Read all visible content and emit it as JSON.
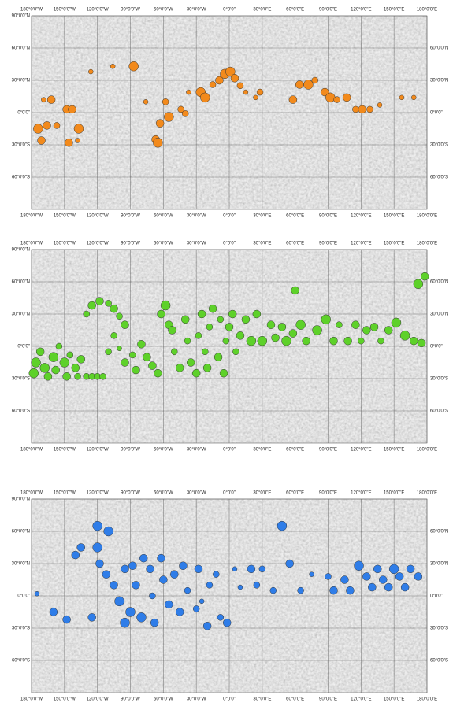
{
  "chart_data": [
    {
      "type": "scatter",
      "color": "#f28a1c",
      "x": [
        -174,
        -171,
        -169,
        -162,
        -166,
        -157,
        -148,
        -143,
        -146,
        -137,
        -138,
        -126,
        -106,
        -87,
        -76,
        -63,
        -58,
        -67,
        -65,
        -55,
        -44,
        -40,
        -37,
        -26,
        -22,
        -15,
        -9,
        -4,
        1,
        5,
        10,
        15,
        24,
        28,
        58,
        64,
        72,
        78,
        87,
        92,
        98,
        107,
        115,
        121,
        128,
        137,
        157,
        168
      ],
      "y": [
        -15,
        -26,
        12,
        12,
        -12,
        -12,
        3,
        3,
        -28,
        -15,
        -26,
        38,
        43,
        43,
        10,
        -10,
        10,
        -25,
        -28,
        -4,
        3,
        -1,
        19,
        19,
        14,
        26,
        30,
        36,
        38,
        32,
        25,
        19,
        14,
        19,
        12,
        26,
        26,
        30,
        19,
        14,
        12,
        14,
        3,
        3,
        3,
        7,
        14,
        14
      ],
      "sizes": [
        6,
        5,
        3,
        5,
        5,
        4,
        5,
        5,
        5,
        6,
        3,
        3,
        3,
        6,
        3,
        5,
        4,
        5,
        6,
        6,
        4,
        4,
        3,
        6,
        6,
        4,
        5,
        6,
        6,
        5,
        4,
        3,
        3,
        4,
        5,
        5,
        6,
        4,
        5,
        6,
        4,
        5,
        4,
        5,
        4,
        3,
        3,
        3
      ],
      "xlim": [
        -180,
        180
      ],
      "ylim": [
        -90,
        90
      ],
      "xticks": [
        {
          "value": -180,
          "label": "180°0'0\"W"
        },
        {
          "value": -150,
          "label": "150°0'0\"W"
        },
        {
          "value": -120,
          "label": "120°0'0\"W"
        },
        {
          "value": -90,
          "label": "90°0'0\"W"
        },
        {
          "value": -60,
          "label": "60°0'0\"W"
        },
        {
          "value": -30,
          "label": "30°0'0\"W"
        },
        {
          "value": 0,
          "label": "0°0'0\""
        },
        {
          "value": 30,
          "label": "30°0'0\"E"
        },
        {
          "value": 60,
          "label": "60°0'0\"E"
        },
        {
          "value": 90,
          "label": "90°0'0\"E"
        },
        {
          "value": 120,
          "label": "120°0'0\"E"
        },
        {
          "value": 150,
          "label": "150°0'0\"E"
        },
        {
          "value": 180,
          "label": "180°0'0\"E"
        }
      ],
      "yticks": [
        {
          "value": 90,
          "label": "90°0'0\"N"
        },
        {
          "value": 60,
          "label": "60°0'0\"N"
        },
        {
          "value": 30,
          "label": "30°0'0\"N"
        },
        {
          "value": 0,
          "label": "0°0'0\""
        },
        {
          "value": -30,
          "label": "30°0'0\"S"
        },
        {
          "value": -60,
          "label": "60°0'0\"S"
        }
      ],
      "grid": true
    },
    {
      "type": "scatter",
      "color": "#5ed12a",
      "x": [
        -178,
        -176,
        -172,
        -168,
        -165,
        -160,
        -158,
        -155,
        -150,
        -148,
        -145,
        -140,
        -138,
        -135,
        -130,
        -125,
        -120,
        -115,
        -130,
        -125,
        -118,
        -110,
        -105,
        -100,
        -95,
        -105,
        -110,
        -100,
        -95,
        -88,
        -85,
        -80,
        -75,
        -70,
        -65,
        -62,
        -58,
        -55,
        -50,
        -52,
        -45,
        -40,
        -38,
        -35,
        -30,
        -28,
        -25,
        -22,
        -20,
        -18,
        -15,
        -10,
        -8,
        -5,
        -3,
        0,
        3,
        6,
        10,
        15,
        20,
        25,
        30,
        38,
        42,
        48,
        52,
        58,
        60,
        65,
        70,
        80,
        88,
        95,
        100,
        108,
        115,
        120,
        125,
        132,
        138,
        145,
        152,
        160,
        168,
        175,
        172,
        178
      ],
      "y": [
        -25,
        -15,
        -5,
        -20,
        -28,
        -10,
        -22,
        0,
        -15,
        -28,
        -8,
        -20,
        -28,
        -12,
        -28,
        -28,
        -28,
        -28,
        30,
        38,
        42,
        40,
        35,
        28,
        20,
        10,
        -5,
        -2,
        -15,
        -8,
        -22,
        2,
        -10,
        -18,
        -25,
        30,
        38,
        20,
        -5,
        15,
        -20,
        25,
        5,
        -15,
        -25,
        10,
        30,
        -5,
        -20,
        18,
        35,
        -10,
        25,
        -25,
        5,
        18,
        30,
        -5,
        10,
        25,
        5,
        30,
        5,
        20,
        8,
        18,
        5,
        12,
        52,
        20,
        5,
        15,
        25,
        5,
        20,
        5,
        20,
        5,
        15,
        18,
        5,
        15,
        22,
        10,
        5,
        3,
        58,
        65
      ],
      "sizes": [
        6,
        6,
        5,
        6,
        5,
        6,
        5,
        4,
        6,
        5,
        4,
        5,
        4,
        5,
        4,
        4,
        4,
        4,
        4,
        5,
        5,
        4,
        5,
        4,
        5,
        4,
        4,
        3,
        5,
        4,
        5,
        5,
        5,
        5,
        5,
        5,
        6,
        5,
        4,
        5,
        5,
        5,
        4,
        5,
        5,
        4,
        5,
        4,
        5,
        4,
        5,
        5,
        4,
        5,
        4,
        5,
        5,
        4,
        5,
        5,
        6,
        5,
        6,
        5,
        5,
        5,
        6,
        5,
        5,
        6,
        5,
        6,
        6,
        5,
        4,
        5,
        5,
        4,
        5,
        5,
        4,
        5,
        6,
        6,
        5,
        5,
        6,
        5
      ],
      "xlim": [
        -180,
        180
      ],
      "ylim": [
        -90,
        90
      ],
      "xticks": [
        {
          "value": -180,
          "label": "180°0'0\"W"
        },
        {
          "value": -150,
          "label": "150°0'0\"W"
        },
        {
          "value": -120,
          "label": "120°0'0\"W"
        },
        {
          "value": -90,
          "label": "90°0'0\"W"
        },
        {
          "value": -60,
          "label": "60°0'0\"W"
        },
        {
          "value": -30,
          "label": "30°0'0\"W"
        },
        {
          "value": 0,
          "label": "0°0'0\""
        },
        {
          "value": 30,
          "label": "30°0'0\"E"
        },
        {
          "value": 60,
          "label": "60°0'0\"E"
        },
        {
          "value": 90,
          "label": "90°0'0\"E"
        },
        {
          "value": 120,
          "label": "120°0'0\"E"
        },
        {
          "value": 150,
          "label": "150°0'0\"E"
        },
        {
          "value": 180,
          "label": "180°0'0\"E"
        }
      ],
      "yticks": [
        {
          "value": 90,
          "label": "90°0'0\"N"
        },
        {
          "value": 60,
          "label": "60°0'0\"N"
        },
        {
          "value": 30,
          "label": "30°0'0\"N"
        },
        {
          "value": 0,
          "label": "0°0'0\""
        },
        {
          "value": -30,
          "label": "30°0'0\"S"
        },
        {
          "value": -60,
          "label": "60°0'0\"S"
        }
      ],
      "grid": true
    },
    {
      "type": "scatter",
      "color": "#2f7de8",
      "x": [
        -175,
        -160,
        -148,
        -140,
        -135,
        -125,
        -120,
        -120,
        -118,
        -110,
        -112,
        -105,
        -100,
        -95,
        -90,
        -95,
        -88,
        -85,
        -80,
        -78,
        -72,
        -70,
        -68,
        -62,
        -60,
        -55,
        -50,
        -45,
        -42,
        -38,
        -30,
        -28,
        -25,
        -20,
        -18,
        -12,
        -8,
        -2,
        5,
        10,
        20,
        25,
        30,
        40,
        48,
        55,
        65,
        75,
        90,
        95,
        105,
        110,
        118,
        125,
        130,
        135,
        140,
        145,
        150,
        155,
        160,
        165,
        172
      ],
      "y": [
        2,
        -15,
        -22,
        38,
        45,
        -20,
        65,
        45,
        30,
        60,
        20,
        10,
        -5,
        -25,
        -15,
        25,
        28,
        10,
        -20,
        35,
        25,
        0,
        -25,
        35,
        15,
        -8,
        20,
        -15,
        28,
        5,
        -12,
        25,
        -5,
        -28,
        10,
        20,
        -20,
        -25,
        25,
        8,
        25,
        10,
        25,
        5,
        65,
        30,
        5,
        20,
        18,
        5,
        15,
        5,
        28,
        18,
        8,
        25,
        15,
        8,
        25,
        18,
        8,
        25,
        18
      ],
      "sizes": [
        3,
        5,
        5,
        5,
        5,
        5,
        6,
        6,
        5,
        6,
        5,
        5,
        6,
        6,
        6,
        5,
        5,
        5,
        6,
        5,
        5,
        4,
        5,
        5,
        5,
        5,
        5,
        5,
        5,
        4,
        4,
        5,
        3,
        5,
        4,
        4,
        4,
        5,
        3,
        3,
        5,
        4,
        4,
        4,
        6,
        5,
        4,
        3,
        4,
        5,
        5,
        5,
        6,
        5,
        5,
        5,
        5,
        5,
        6,
        5,
        5,
        5,
        5
      ],
      "xlim": [
        -180,
        180
      ],
      "ylim": [
        -90,
        90
      ],
      "xticks": [
        {
          "value": -180,
          "label": "180°0'0\"W"
        },
        {
          "value": -150,
          "label": "150°0'0\"W"
        },
        {
          "value": -120,
          "label": "120°0'0\"W"
        },
        {
          "value": -90,
          "label": "90°0'0\"W"
        },
        {
          "value": -60,
          "label": "60°0'0\"W"
        },
        {
          "value": -30,
          "label": "30°0'0\"W"
        },
        {
          "value": 0,
          "label": "0°0'0\""
        },
        {
          "value": 30,
          "label": "30°0'0\"E"
        },
        {
          "value": 60,
          "label": "60°0'0\"E"
        },
        {
          "value": 90,
          "label": "90°0'0\"E"
        },
        {
          "value": 120,
          "label": "120°0'0\"E"
        },
        {
          "value": 150,
          "label": "150°0'0\"E"
        },
        {
          "value": 180,
          "label": "180°0'0\"E"
        }
      ],
      "yticks": [
        {
          "value": 90,
          "label": "90°0'0\"N"
        },
        {
          "value": 60,
          "label": "60°0'0\"N"
        },
        {
          "value": 30,
          "label": "30°0'0\"N"
        },
        {
          "value": 0,
          "label": "0°0'0\""
        },
        {
          "value": -30,
          "label": "30°0'0\"S"
        },
        {
          "value": -60,
          "label": "60°0'0\"S"
        }
      ],
      "grid": true
    }
  ]
}
